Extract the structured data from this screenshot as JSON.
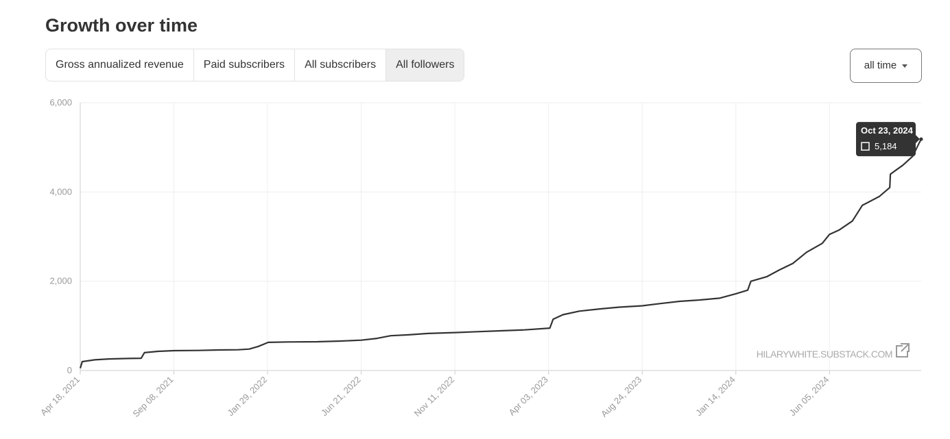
{
  "header": {
    "title": "Growth over time"
  },
  "tabs": [
    "Gross annualized revenue",
    "Paid subscribers",
    "All subscribers",
    "All followers"
  ],
  "active_tab": 3,
  "range_selector": "all time",
  "watermark": "HILARYWHITE.SUBSTACK.COM",
  "chart_data": {
    "type": "line",
    "color": "#333333",
    "grid": true,
    "x": [
      "2021-04-18",
      "2021-04-21",
      "2021-05-10",
      "2021-06-01",
      "2021-07-01",
      "2021-07-20",
      "2021-07-25",
      "2021-08-15",
      "2021-09-08",
      "2021-10-15",
      "2021-11-15",
      "2021-12-15",
      "2022-01-01",
      "2022-01-15",
      "2022-01-30",
      "2022-03-01",
      "2022-04-15",
      "2022-05-20",
      "2022-06-21",
      "2022-07-15",
      "2022-08-05",
      "2022-09-01",
      "2022-10-01",
      "2022-11-11",
      "2022-12-15",
      "2023-01-20",
      "2023-02-25",
      "2023-04-05",
      "2023-04-10",
      "2023-04-25",
      "2023-05-20",
      "2023-06-20",
      "2023-07-20",
      "2023-08-24",
      "2023-09-20",
      "2023-10-20",
      "2023-11-20",
      "2023-12-20",
      "2024-01-14",
      "2024-02-01",
      "2024-02-06",
      "2024-03-01",
      "2024-03-20",
      "2024-04-10",
      "2024-05-01",
      "2024-05-25",
      "2024-06-05",
      "2024-06-20",
      "2024-07-10",
      "2024-07-25",
      "2024-08-20",
      "2024-09-05",
      "2024-09-06",
      "2024-09-25",
      "2024-10-10",
      "2024-10-20",
      "2024-10-23"
    ],
    "values": [
      50,
      200,
      240,
      260,
      270,
      275,
      400,
      430,
      445,
      450,
      460,
      465,
      480,
      540,
      630,
      640,
      645,
      660,
      680,
      720,
      780,
      800,
      830,
      850,
      870,
      890,
      910,
      950,
      1150,
      1250,
      1330,
      1380,
      1420,
      1450,
      1500,
      1550,
      1580,
      1620,
      1720,
      1800,
      2000,
      2100,
      2250,
      2400,
      2650,
      2850,
      3050,
      3150,
      3350,
      3700,
      3900,
      4100,
      4400,
      4600,
      4800,
      5100,
      5184
    ],
    "xlim": [
      "2021-04-18",
      "2024-10-23"
    ],
    "xticks": [
      {
        "value": "2021-04-18",
        "label": "Apr 18, 2021"
      },
      {
        "value": "2021-09-08",
        "label": "Sep 08, 2021"
      },
      {
        "value": "2022-01-29",
        "label": "Jan 29, 2022"
      },
      {
        "value": "2022-06-21",
        "label": "Jun 21, 2022"
      },
      {
        "value": "2022-11-11",
        "label": "Nov 11, 2022"
      },
      {
        "value": "2023-04-03",
        "label": "Apr 03, 2023"
      },
      {
        "value": "2023-08-24",
        "label": "Aug 24, 2023"
      },
      {
        "value": "2024-01-14",
        "label": "Jan 14, 2024"
      },
      {
        "value": "2024-06-05",
        "label": "Jun 05, 2024"
      }
    ],
    "ylim": [
      0,
      6000
    ],
    "yticks": [
      0,
      {
        "value": 2000,
        "label": "2,000"
      },
      {
        "value": 4000,
        "label": "4,000"
      },
      {
        "value": 6000,
        "label": "6,000"
      }
    ],
    "tooltip": {
      "title": "Oct 23, 2024",
      "value_label": "5,184"
    }
  }
}
